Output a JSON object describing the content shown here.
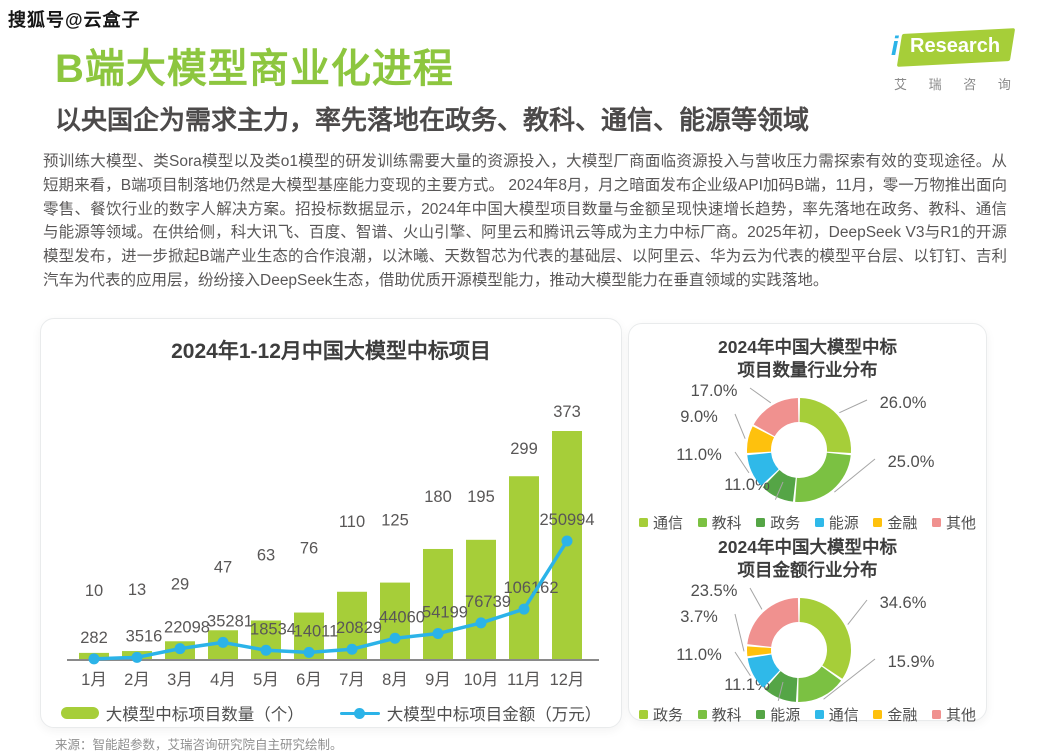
{
  "page": {
    "watermark": "搜狐号@云盒子"
  },
  "logo": {
    "i": "i",
    "research": "Research",
    "caption": "艾 瑞 咨 询"
  },
  "header": {
    "title": "B端大模型商业化进程",
    "subtitle": "以央国企为需求主力，率先落地在政务、教科、通信、能源等领域"
  },
  "body": {
    "paragraph": "预训练大模型、类Sora模型以及类o1模型的研发训练需要大量的资源投入，大模型厂商面临资源投入与营收压力需探索有效的变现途径。从短期来看，B端项目制落地仍然是大模型基座能力变现的主要方式。 2024年8月，月之暗面发布企业级API加码B端，11月，零一万物推出面向零售、餐饮行业的数字人解决方案。招投标数据显示，2024年中国大模型项目数量与金额呈现快速增长趋势，率先落地在政务、教科、通信与能源等领域。在供给侧，科大讯飞、百度、智谱、火山引擎、阿里云和腾讯云等成为主力中标厂商。2025年初，DeepSeek V3与R1的开源模型发布，进一步掀起B端产业生态的合作浪潮，以沐曦、天数智芯为代表的基础层、以阿里云、华为云为代表的模型平台层、以钉钉、吉利汽车为代表的应用层，纷纷接入DeepSeek生态，借助优质开源模型能力，推动大模型能力在垂直领域的实践落地。"
  },
  "footer": {
    "source": "来源：智能超参数，艾瑞咨询研究院自主研究绘制。"
  },
  "colors": {
    "accent_green": "#8DC63F",
    "bar_green": "#A6CE39",
    "line_blue": "#2BB3E8",
    "donut_palette": [
      "#A6CE39",
      "#7BC142",
      "#55A546",
      "#2FB9E9",
      "#FEC10D",
      "#F0918F"
    ]
  },
  "chart_data": [
    {
      "type": "bar",
      "title": "2024年1-12月中国大模型中标项目",
      "categories": [
        "1月",
        "2月",
        "3月",
        "4月",
        "5月",
        "6月",
        "7月",
        "8月",
        "9月",
        "10月",
        "11月",
        "12月"
      ],
      "series": [
        {
          "name": "大模型中标项目数量（个）",
          "type": "bar",
          "color": "#A6CE39",
          "values": [
            10,
            13,
            29,
            47,
            63,
            76,
            110,
            125,
            180,
            195,
            299,
            373
          ]
        },
        {
          "name": "大模型中标项目金额（万元）",
          "type": "line",
          "color": "#2BB3E8",
          "values": [
            282,
            3516,
            22098,
            35281,
            18534,
            14011,
            20829,
            44060,
            54199,
            76739,
            106162,
            250994
          ]
        }
      ],
      "xlabel": "",
      "ylabel": "",
      "grid": false,
      "legend_position": "bottom"
    },
    {
      "type": "pie",
      "title": "2024年中国大模型中标项目数量行业分布",
      "title_line1": "2024年中国大模型中标",
      "title_line2": "项目数量行业分布",
      "labels": [
        "通信",
        "教科",
        "政务",
        "能源",
        "金融",
        "其他"
      ],
      "values": [
        26.0,
        25.0,
        11.0,
        11.0,
        9.0,
        17.0
      ],
      "colors": [
        "#A6CE39",
        "#7BC142",
        "#55A546",
        "#2FB9E9",
        "#FEC10D",
        "#F0918F"
      ],
      "label_format": "percent"
    },
    {
      "type": "pie",
      "title": "2024年中国大模型中标项目金额行业分布",
      "title_line1": "2024年中国大模型中标",
      "title_line2": "项目金额行业分布",
      "labels": [
        "政务",
        "教科",
        "能源",
        "通信",
        "金融",
        "其他"
      ],
      "values": [
        34.6,
        15.9,
        11.1,
        11.0,
        3.7,
        23.5
      ],
      "colors": [
        "#A6CE39",
        "#7BC142",
        "#55A546",
        "#2FB9E9",
        "#FEC10D",
        "#F0918F"
      ],
      "label_format": "percent"
    }
  ]
}
